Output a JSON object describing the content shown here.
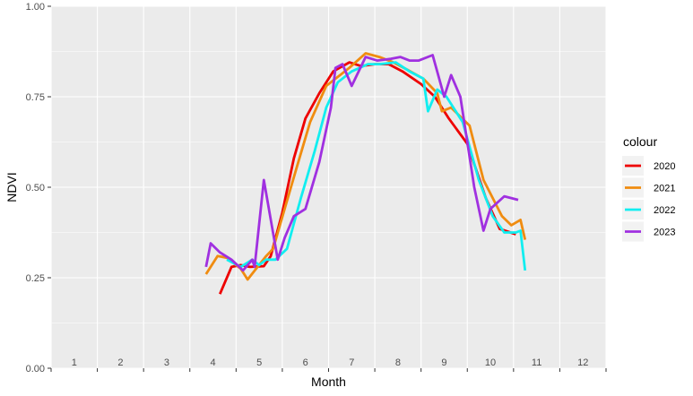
{
  "chart_data": {
    "type": "line",
    "title": "",
    "xlabel": "Month",
    "ylabel": "NDVI",
    "xlim": [
      0.5,
      12.5
    ],
    "ylim": [
      0.0,
      1.0
    ],
    "x_ticks": [
      1,
      2,
      3,
      4,
      5,
      6,
      7,
      8,
      9,
      10,
      11,
      12
    ],
    "x_tick_labels": [
      "1",
      "2",
      "3",
      "4",
      "5",
      "6",
      "7",
      "8",
      "9",
      "10",
      "11",
      "12"
    ],
    "y_ticks": [
      0.0,
      0.25,
      0.5,
      0.75,
      1.0
    ],
    "y_tick_labels": [
      "0.00",
      "0.25",
      "0.50",
      "0.75",
      "1.00"
    ],
    "grid": true,
    "legend": {
      "title": "colour",
      "position": "right"
    },
    "series": [
      {
        "name": "2020",
        "color": "#ee0000",
        "x": [
          4.15,
          4.4,
          4.6,
          4.8,
          5.1,
          5.25,
          5.5,
          5.75,
          6.0,
          6.3,
          6.6,
          6.95,
          7.2,
          7.5,
          7.8,
          8.1,
          8.5,
          8.8,
          9.1,
          9.5,
          9.9,
          10.2,
          10.55
        ],
        "y": [
          0.205,
          0.28,
          0.285,
          0.28,
          0.282,
          0.31,
          0.43,
          0.58,
          0.69,
          0.76,
          0.82,
          0.845,
          0.835,
          0.84,
          0.84,
          0.82,
          0.785,
          0.75,
          0.69,
          0.62,
          0.47,
          0.385,
          0.37
        ]
      },
      {
        "name": "2021",
        "color": "#f08c10",
        "x": [
          3.85,
          4.1,
          4.3,
          4.6,
          4.75,
          5.15,
          5.3,
          5.55,
          5.8,
          6.1,
          6.45,
          6.95,
          7.3,
          7.6,
          7.9,
          8.2,
          8.55,
          8.85,
          8.95,
          9.15,
          9.55,
          9.85,
          10.25,
          10.45,
          10.65,
          10.75
        ],
        "y": [
          0.26,
          0.31,
          0.305,
          0.275,
          0.245,
          0.31,
          0.33,
          0.44,
          0.55,
          0.68,
          0.78,
          0.83,
          0.87,
          0.86,
          0.845,
          0.825,
          0.8,
          0.76,
          0.71,
          0.72,
          0.67,
          0.52,
          0.42,
          0.395,
          0.41,
          0.355
        ]
      },
      {
        "name": "2022",
        "color": "#11eef0",
        "x": [
          4.3,
          4.6,
          4.85,
          5.0,
          5.15,
          5.35,
          5.6,
          5.9,
          6.2,
          6.45,
          6.7,
          7.0,
          7.35,
          7.6,
          7.95,
          8.25,
          8.55,
          8.65,
          8.85,
          9.05,
          9.4,
          9.75,
          10.05,
          10.3,
          10.55,
          10.65,
          10.75
        ],
        "y": [
          0.3,
          0.28,
          0.3,
          0.285,
          0.3,
          0.3,
          0.33,
          0.47,
          0.6,
          0.72,
          0.79,
          0.82,
          0.84,
          0.84,
          0.845,
          0.82,
          0.8,
          0.71,
          0.77,
          0.75,
          0.68,
          0.52,
          0.42,
          0.375,
          0.375,
          0.38,
          0.27
        ]
      },
      {
        "name": "2023",
        "color": "#a030e0",
        "x": [
          3.85,
          3.95,
          4.15,
          4.4,
          4.65,
          4.85,
          4.9,
          5.1,
          5.4,
          5.55,
          5.75,
          6.0,
          6.3,
          6.55,
          6.65,
          6.8,
          7.0,
          7.3,
          7.55,
          7.85,
          8.05,
          8.25,
          8.45,
          8.75,
          9.0,
          9.15,
          9.35,
          9.65,
          9.85,
          10.0,
          10.3,
          10.45,
          10.6
        ],
        "y": [
          0.28,
          0.345,
          0.32,
          0.3,
          0.27,
          0.3,
          0.28,
          0.52,
          0.3,
          0.36,
          0.42,
          0.44,
          0.57,
          0.72,
          0.83,
          0.84,
          0.78,
          0.86,
          0.85,
          0.855,
          0.86,
          0.85,
          0.85,
          0.865,
          0.75,
          0.81,
          0.75,
          0.5,
          0.38,
          0.44,
          0.475,
          0.47,
          0.465
        ]
      }
    ]
  }
}
